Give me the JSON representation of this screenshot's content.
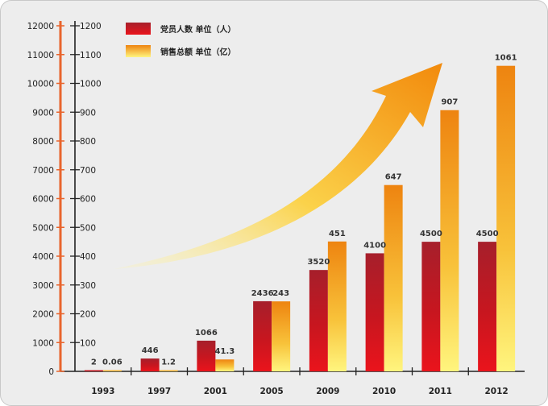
{
  "chart_data": {
    "type": "bar",
    "categories": [
      "1993",
      "1997",
      "2001",
      "2005",
      "2009",
      "2010",
      "2011",
      "2012"
    ],
    "series": [
      {
        "name": "党员人数  单位（人）",
        "axis": "left",
        "values": [
          2,
          446,
          1066,
          2436,
          3520,
          4100,
          4500,
          4500
        ],
        "labels": [
          "2",
          "446",
          "1066",
          "2436",
          "3520",
          "4100",
          "4500",
          "4500"
        ],
        "color_top": "#b11f2a",
        "color_bottom": "#e8141c"
      },
      {
        "name": "销售总额  单位（亿）",
        "axis": "right",
        "values": [
          0.06,
          1.2,
          41.3,
          243,
          451,
          647,
          907,
          1061
        ],
        "labels": [
          "0.06",
          "1.2",
          "41.3",
          "243",
          "451",
          "647",
          "907",
          "1061"
        ],
        "color_top": "#ef8a10",
        "color_bottom": "#fff27a"
      }
    ],
    "left_axis": {
      "ticks": [
        "0",
        "1000",
        "2000",
        "3000",
        "4000",
        "5000",
        "6000",
        "7000",
        "8000",
        "9000",
        "10000",
        "11000",
        "12000"
      ],
      "ylim": [
        0,
        12000
      ]
    },
    "right_axis": {
      "ticks": [
        "100",
        "200",
        "300",
        "400",
        "500",
        "600",
        "700",
        "800",
        "900",
        "1000",
        "1100",
        "1200"
      ],
      "ylim": [
        0,
        1200
      ]
    },
    "legend_position": "top-left",
    "trend_arrow": true,
    "colors": {
      "background": "#ededed",
      "axis_left": "#e8642c",
      "axis_right": "#222222",
      "arrow": "#f29a12"
    }
  }
}
